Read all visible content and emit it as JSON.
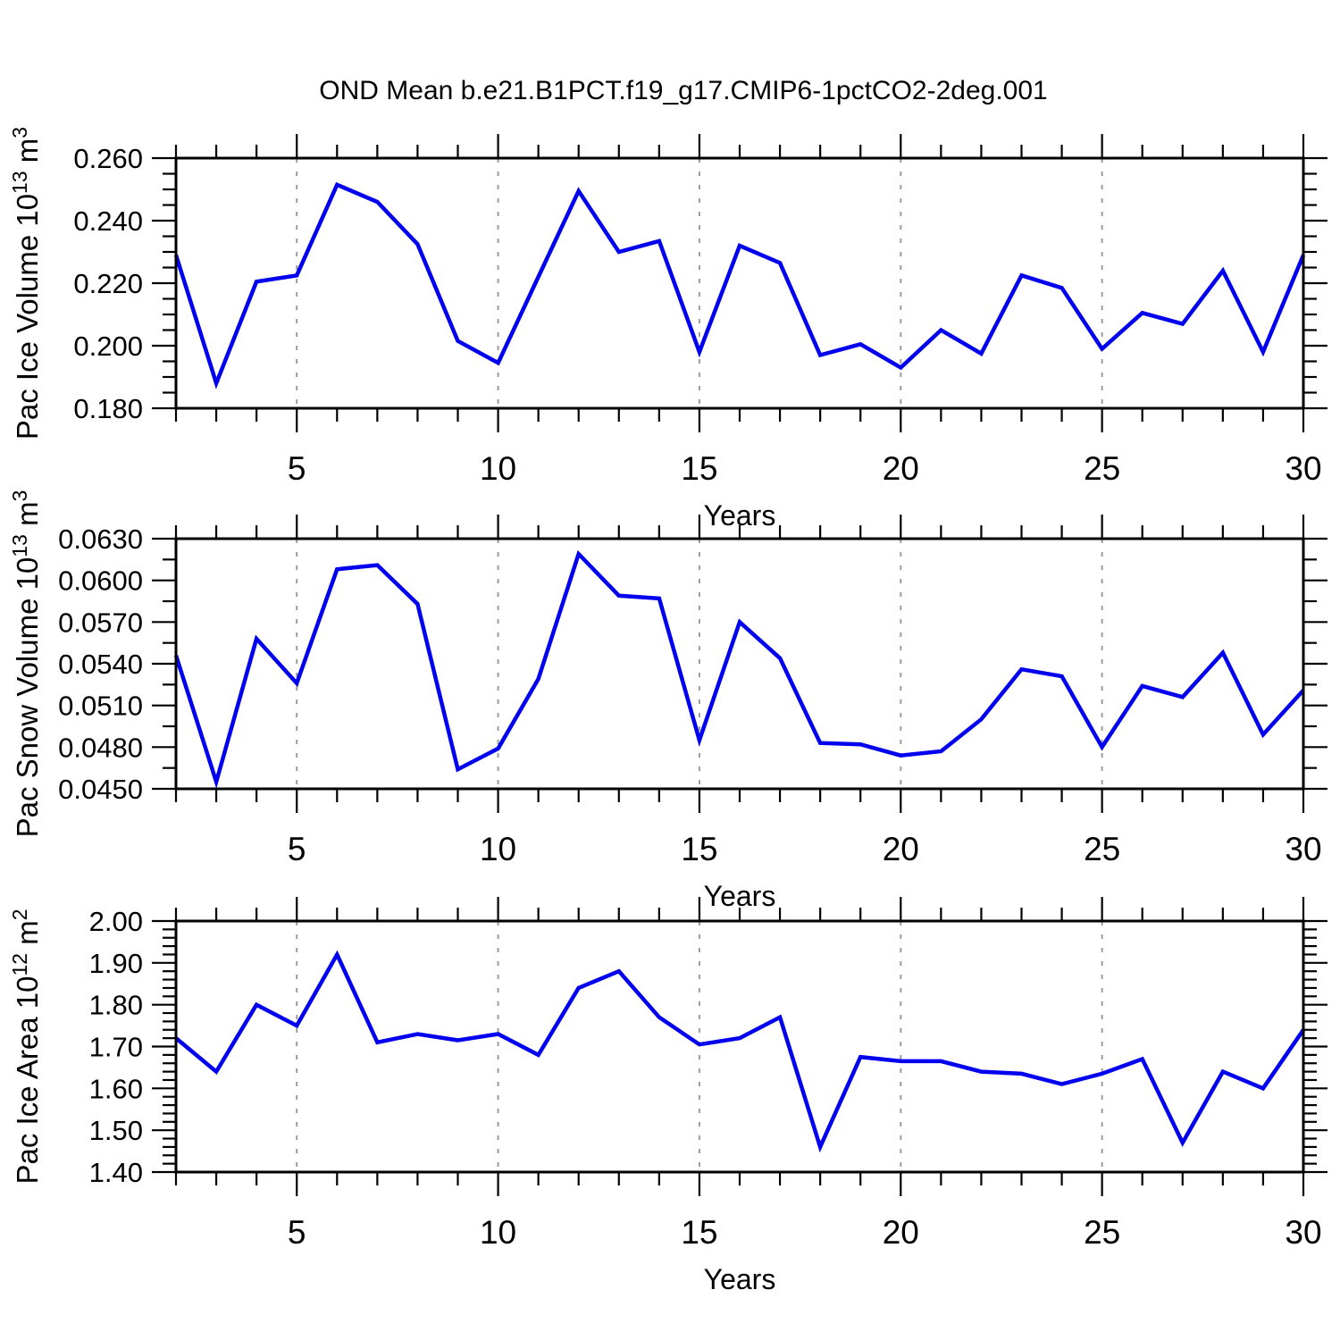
{
  "figure_title": "OND Mean b.e21.B1PCT.f19_g17.CMIP6-1pctCO2-2deg.001",
  "style": {
    "line_color": "#0000ee",
    "grid_color": "#9c9c9c",
    "axis_color": "#000000",
    "background": "#ffffff"
  },
  "chart_data": [
    {
      "id": "pac-ice-volume",
      "type": "line",
      "x_label": "Years",
      "y_label": "Pac Ice Volume 10^13 m^3",
      "y_label_parts": [
        {
          "text": "Pac Ice Volume 10",
          "sup": false
        },
        {
          "text": "13",
          "sup": true
        },
        {
          "text": " m",
          "sup": false
        },
        {
          "text": "3",
          "sup": true
        }
      ],
      "x": [
        2,
        3,
        4,
        5,
        6,
        7,
        8,
        9,
        10,
        11,
        12,
        13,
        14,
        15,
        16,
        17,
        18,
        19,
        20,
        21,
        22,
        23,
        24,
        25,
        26,
        27,
        28,
        29,
        30
      ],
      "values": [
        0.229,
        0.188,
        0.2205,
        0.2225,
        0.2515,
        0.246,
        0.2325,
        0.2015,
        0.1945,
        0.222,
        0.2495,
        0.23,
        0.2335,
        0.198,
        0.232,
        0.2265,
        0.197,
        0.2005,
        0.193,
        0.205,
        0.1975,
        0.2225,
        0.2185,
        0.199,
        0.2105,
        0.207,
        0.224,
        0.198,
        0.229
      ],
      "xlim": [
        2,
        30
      ],
      "ylim": [
        0.18,
        0.26
      ],
      "y_major_step": 0.02,
      "y_minor_step": 0.005,
      "y_tick_decimals": 3,
      "y_tick_labels": [
        "0.180",
        "0.200",
        "0.220",
        "0.240",
        "0.260"
      ],
      "x_major_ticks": [
        5,
        10,
        15,
        20,
        25,
        30
      ],
      "x_grid_lines": [
        5,
        10,
        15,
        20,
        25
      ],
      "x_tick_labels": [
        "5",
        "10",
        "15",
        "20",
        "25",
        "30"
      ],
      "grid": "dashed-vertical"
    },
    {
      "id": "pac-snow-volume",
      "type": "line",
      "x_label": "Years",
      "y_label": "Pac Snow Volume 10^13 m^3",
      "y_label_parts": [
        {
          "text": "Pac Snow Volume 10",
          "sup": false
        },
        {
          "text": "13",
          "sup": true
        },
        {
          "text": " m",
          "sup": false
        },
        {
          "text": "3",
          "sup": true
        }
      ],
      "x": [
        2,
        3,
        4,
        5,
        6,
        7,
        8,
        9,
        10,
        11,
        12,
        13,
        14,
        15,
        16,
        17,
        18,
        19,
        20,
        21,
        22,
        23,
        24,
        25,
        26,
        27,
        28,
        29,
        30
      ],
      "values": [
        0.0546,
        0.0455,
        0.0558,
        0.0526,
        0.0608,
        0.0611,
        0.0583,
        0.0464,
        0.0479,
        0.0529,
        0.0619,
        0.0589,
        0.0587,
        0.0485,
        0.057,
        0.0544,
        0.0483,
        0.0482,
        0.0474,
        0.0477,
        0.05,
        0.0536,
        0.0531,
        0.048,
        0.0524,
        0.0516,
        0.0548,
        0.0489,
        0.0521
      ],
      "xlim": [
        2,
        30
      ],
      "ylim": [
        0.045,
        0.063
      ],
      "y_major_step": 0.003,
      "y_minor_step": 0.0015,
      "y_tick_decimals": 4,
      "y_tick_labels": [
        "0.0450",
        "0.0480",
        "0.0510",
        "0.0540",
        "0.0570",
        "0.0600",
        "0.0630"
      ],
      "x_major_ticks": [
        5,
        10,
        15,
        20,
        25,
        30
      ],
      "x_grid_lines": [
        5,
        10,
        15,
        20,
        25
      ],
      "x_tick_labels": [
        "5",
        "10",
        "15",
        "20",
        "25",
        "30"
      ],
      "grid": "dashed-vertical"
    },
    {
      "id": "pac-ice-area",
      "type": "line",
      "x_label": "Years",
      "y_label": "Pac Ice Area 10^12 m^2",
      "y_label_parts": [
        {
          "text": "Pac Ice Area 10",
          "sup": false
        },
        {
          "text": "12",
          "sup": true
        },
        {
          "text": " m",
          "sup": false
        },
        {
          "text": "2",
          "sup": true
        }
      ],
      "x": [
        2,
        3,
        4,
        5,
        6,
        7,
        8,
        9,
        10,
        11,
        12,
        13,
        14,
        15,
        16,
        17,
        18,
        19,
        20,
        21,
        22,
        23,
        24,
        25,
        26,
        27,
        28,
        29,
        30
      ],
      "values": [
        1.72,
        1.64,
        1.8,
        1.75,
        1.92,
        1.71,
        1.73,
        1.715,
        1.73,
        1.68,
        1.84,
        1.88,
        1.77,
        1.705,
        1.72,
        1.77,
        1.46,
        1.675,
        1.665,
        1.665,
        1.64,
        1.635,
        1.61,
        1.635,
        1.67,
        1.47,
        1.64,
        1.6,
        1.74
      ],
      "xlim": [
        2,
        30
      ],
      "ylim": [
        1.4,
        2.0
      ],
      "y_major_step": 0.1,
      "y_minor_step": 0.02,
      "y_tick_decimals": 2,
      "y_tick_labels": [
        "1.40",
        "1.50",
        "1.60",
        "1.70",
        "1.80",
        "1.90",
        "2.00"
      ],
      "x_major_ticks": [
        5,
        10,
        15,
        20,
        25,
        30
      ],
      "x_grid_lines": [
        5,
        10,
        15,
        20,
        25
      ],
      "x_tick_labels": [
        "5",
        "10",
        "15",
        "20",
        "25",
        "30"
      ],
      "grid": "dashed-vertical"
    }
  ]
}
